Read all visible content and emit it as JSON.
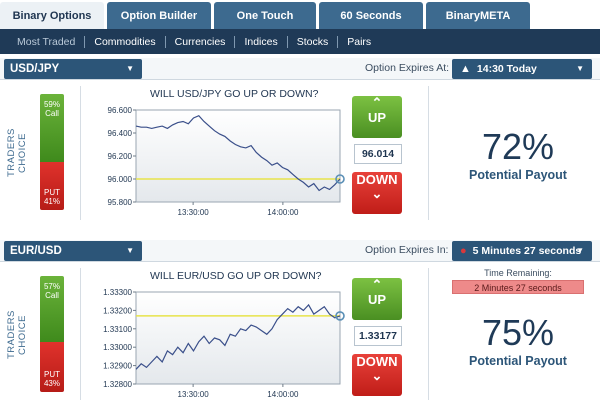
{
  "tabs": [
    {
      "label": "Binary Options",
      "active": true
    },
    {
      "label": "Option Builder",
      "active": false
    },
    {
      "label": "One Touch",
      "active": false
    },
    {
      "label": "60 Seconds",
      "active": false
    },
    {
      "label": "BinaryMETA",
      "active": false
    }
  ],
  "subnav": [
    "Most Traded",
    "Commodities",
    "Currencies",
    "Indices",
    "Stocks",
    "Pairs"
  ],
  "panels": [
    {
      "pair": "USD/JPY",
      "expires_label": "Option Expires At:",
      "expires_value": "14:30 Today",
      "expires_icon": "bell-icon",
      "traders_choice_label": "TRADERS CHOICE",
      "call_pct": "59%",
      "call_label": "Call",
      "put_label": "PUT",
      "put_pct": "41%",
      "call_fraction": 0.59,
      "question": "WILL USD/JPY GO UP OR DOWN?",
      "up_label": "UP",
      "down_label": "DOWN",
      "current_price": "96.014",
      "payout_pct": "72%",
      "payout_label": "Potential Payout",
      "time_remaining_label": "",
      "time_remaining_value": ""
    },
    {
      "pair": "EUR/USD",
      "expires_label": "Option Expires In:",
      "expires_value": "5 Minutes 27 seconds",
      "expires_icon": "timer-icon",
      "traders_choice_label": "TRADERS CHOICE",
      "call_pct": "57%",
      "call_label": "Call",
      "put_label": "PUT",
      "put_pct": "43%",
      "call_fraction": 0.57,
      "question": "WILL EUR/USD GO UP OR DOWN?",
      "up_label": "UP",
      "down_label": "DOWN",
      "current_price": "1.33177",
      "payout_pct": "75%",
      "payout_label": "Potential Payout",
      "time_remaining_label": "Time Remaining:",
      "time_remaining_value": "2 Minutes 27 seconds"
    }
  ],
  "chart_data": [
    {
      "type": "line",
      "title": "",
      "xlabel": "",
      "ylabel": "",
      "x_ticks": [
        "13:30:00",
        "14:00:00"
      ],
      "y_ticks": [
        "96.600",
        "96.400",
        "96.200",
        "96.000",
        "95.800"
      ],
      "ylim": [
        95.8,
        96.6
      ],
      "reference_line": 96.0,
      "series": [
        {
          "values": [
            96.46,
            96.45,
            96.45,
            96.44,
            96.45,
            96.46,
            96.44,
            96.47,
            96.49,
            96.5,
            96.48,
            96.53,
            96.55,
            96.5,
            96.46,
            96.42,
            96.39,
            96.37,
            96.33,
            96.3,
            96.28,
            96.27,
            96.29,
            96.23,
            96.19,
            96.16,
            96.12,
            96.14,
            96.1,
            96.08,
            96.04,
            96.0,
            95.97,
            95.93,
            95.96,
            95.9,
            95.93,
            95.91,
            95.95,
            96.0
          ]
        }
      ]
    },
    {
      "type": "line",
      "title": "",
      "xlabel": "",
      "ylabel": "",
      "x_ticks": [
        "13:30:00",
        "14:00:00"
      ],
      "y_ticks": [
        "1.33300",
        "1.33200",
        "1.33100",
        "1.33000",
        "1.32900",
        "1.32800"
      ],
      "ylim": [
        1.328,
        1.333
      ],
      "reference_line": 1.3317,
      "series": [
        {
          "values": [
            1.3288,
            1.3291,
            1.3289,
            1.3292,
            1.3295,
            1.3292,
            1.3298,
            1.3296,
            1.33,
            1.3297,
            1.3302,
            1.3298,
            1.3303,
            1.3306,
            1.3302,
            1.3305,
            1.3304,
            1.3301,
            1.3307,
            1.3306,
            1.331,
            1.3309,
            1.3312,
            1.3311,
            1.3309,
            1.3307,
            1.331,
            1.3315,
            1.3318,
            1.3321,
            1.3319,
            1.3322,
            1.332,
            1.3323,
            1.3318,
            1.332,
            1.3322,
            1.3318,
            1.3316,
            1.3317
          ]
        }
      ]
    }
  ],
  "colors": {
    "nav_dark": "#1f3a57",
    "tab_blue": "#3d6a8f",
    "call_green": "#4a8f22",
    "put_red": "#c01d18",
    "reference_yellow": "#e7e34a",
    "line_blue": "#3a4f8a"
  }
}
